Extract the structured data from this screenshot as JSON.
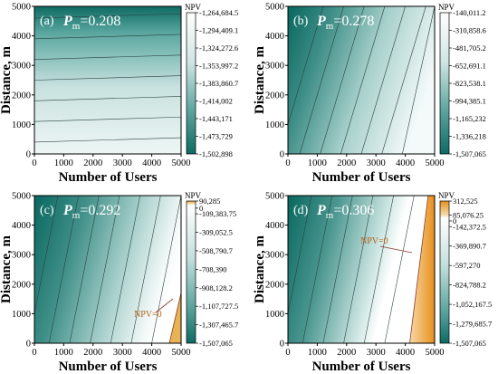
{
  "chart_data": [
    {
      "type": "heatmap",
      "panel": "(a)",
      "pm_label": "P",
      "pm_sub": "m",
      "pm_value": "=0.208",
      "xlabel": "Number of Users",
      "ylabel": "Distance, m",
      "xlim": [
        0,
        5000
      ],
      "ylim": [
        0,
        5000
      ],
      "x_ticks": [
        0,
        1000,
        2000,
        3000,
        4000,
        5000
      ],
      "y_ticks": [
        0,
        1000,
        2000,
        3000,
        4000,
        5000
      ],
      "colorbar_title": "NPV",
      "colorbar_ticks": [
        "-1,264,684.5",
        "-1,294,409.1",
        "-1,324,272.6",
        "-1,353,997.2",
        "-1,383,860.7",
        "-1,414,002",
        "-1,443,171",
        "-1,473,729",
        "-1,502,898"
      ],
      "color_stops": [
        "#ffffff",
        "#0d6b63"
      ],
      "npv_zero_label": "",
      "contour_orientation": "horizontal"
    },
    {
      "type": "heatmap",
      "panel": "(b)",
      "pm_label": "P",
      "pm_sub": "m",
      "pm_value": "=0.278",
      "xlabel": "Number of Users",
      "ylabel": "Distance, m",
      "xlim": [
        0,
        5000
      ],
      "ylim": [
        0,
        5000
      ],
      "x_ticks": [
        0,
        1000,
        2000,
        3000,
        4000,
        5000
      ],
      "y_ticks": [
        0,
        1000,
        2000,
        3000,
        4000,
        5000
      ],
      "colorbar_title": "NPV",
      "colorbar_ticks": [
        "-140,011.2",
        "-310,858.6",
        "-481,705.2",
        "-652,691.1",
        "-823,538.1",
        "-994,385.1",
        "-1,165,232",
        "-1,336,218",
        "-1,507,065"
      ],
      "color_stops": [
        "#ffffff",
        "#0d6b63"
      ],
      "npv_zero_label": "",
      "contour_orientation": "slanted"
    },
    {
      "type": "heatmap",
      "panel": "(c)",
      "pm_label": "P",
      "pm_sub": "m",
      "pm_value": "=0.292",
      "xlabel": "Number of Users",
      "ylabel": "Distance, m",
      "xlim": [
        0,
        5000
      ],
      "ylim": [
        0,
        5000
      ],
      "x_ticks": [
        0,
        1000,
        2000,
        3000,
        4000,
        5000
      ],
      "y_ticks": [
        0,
        1000,
        2000,
        3000,
        4000,
        5000
      ],
      "colorbar_title": "NPV",
      "colorbar_ticks": [
        "90,285",
        "0",
        "-109,383.75",
        "-309,052.5",
        "-508,790.7",
        "-708,390",
        "-908,128.2",
        "-1,107,727.5",
        "-1,307,465.7",
        "-1,507,065"
      ],
      "color_stops": [
        "#e3a23a",
        "#ffffff",
        "#0d6b63"
      ],
      "npv_zero_label": "NPV=0",
      "contour_orientation": "slanted"
    },
    {
      "type": "heatmap",
      "panel": "(d)",
      "pm_label": "P",
      "pm_sub": "m",
      "pm_value": "=0.306",
      "xlabel": "Number of Users",
      "ylabel": "Distance, m",
      "xlim": [
        0,
        5000
      ],
      "ylim": [
        0,
        5000
      ],
      "x_ticks": [
        0,
        1000,
        2000,
        3000,
        4000,
        5000
      ],
      "y_ticks": [
        0,
        1000,
        2000,
        3000,
        4000,
        5000
      ],
      "colorbar_title": "NPV",
      "colorbar_ticks": [
        "312,525",
        "85,076.25",
        "0",
        "-142,372.5",
        "-369,890.7",
        "-597,270",
        "-824,788.2",
        "-1,052,167.5",
        "-1,279,685.7",
        "-1,507,065"
      ],
      "color_stops": [
        "#e8901c",
        "#ffffff",
        "#0d6b63"
      ],
      "npv_zero_label": "NPV=0",
      "contour_orientation": "slanted"
    }
  ]
}
